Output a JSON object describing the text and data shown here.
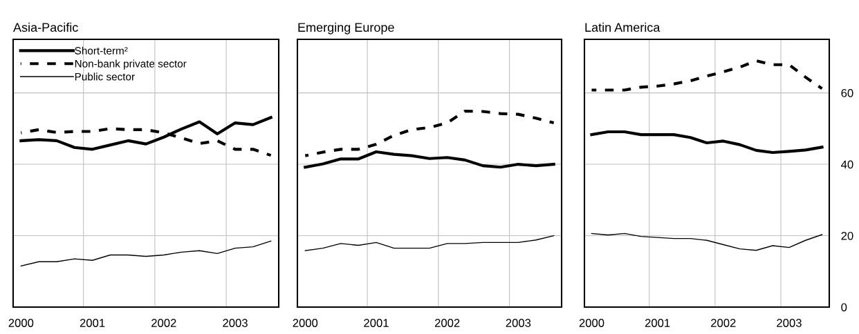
{
  "chart_data": [
    {
      "type": "line",
      "title": "Asia-Pacific",
      "x": [
        2000.0,
        2000.25,
        2000.5,
        2000.75,
        2001.0,
        2001.25,
        2001.5,
        2001.75,
        2002.0,
        2002.25,
        2002.5,
        2002.75,
        2003.0,
        2003.25,
        2003.5
      ],
      "series": [
        {
          "name": "Short-term²",
          "color": "#000000",
          "line_style": "solid",
          "values": [
            46.6,
            46.9,
            46.6,
            44.7,
            44.2,
            45.4,
            46.6,
            45.7,
            47.6,
            49.9,
            51.9,
            48.5,
            51.6,
            51.1,
            53.1
          ]
        },
        {
          "name": "Non-bank private sector",
          "color": "#000000",
          "line_style": "dashed",
          "values": [
            48.8,
            49.7,
            48.9,
            49.2,
            49.2,
            50.0,
            49.7,
            49.7,
            48.8,
            47.4,
            45.8,
            46.6,
            44.2,
            44.2,
            42.5
          ]
        },
        {
          "name": "Public sector",
          "color": "#000000",
          "line_style": "solid",
          "values": [
            11.5,
            12.7,
            12.7,
            13.5,
            13.1,
            14.6,
            14.6,
            14.2,
            14.6,
            15.4,
            15.8,
            15.0,
            16.5,
            16.9,
            18.5
          ]
        }
      ],
      "xlim": [
        1999.89,
        2003.61
      ],
      "xticks": [
        2000,
        2001,
        2002,
        2003
      ],
      "ylim": [
        0,
        75
      ],
      "yticks": [
        0,
        20,
        40,
        60
      ],
      "ref_lines": [
        {
          "axis": "x",
          "value": 2000.875,
          "color": "#c0c0c0"
        },
        {
          "axis": "x",
          "value": 2001.875,
          "color": "#c0c0c0"
        },
        {
          "axis": "x",
          "value": 2002.875,
          "color": "#c0c0c0"
        }
      ],
      "grid": "y",
      "legend": "top left",
      "tick_labels": "x"
    },
    {
      "type": "line",
      "title": "Emerging Europe",
      "x": [
        2000.0,
        2000.25,
        2000.5,
        2000.75,
        2001.0,
        2001.25,
        2001.5,
        2001.75,
        2002.0,
        2002.25,
        2002.5,
        2002.75,
        2003.0,
        2003.25,
        2003.5
      ],
      "series": [
        {
          "color": "#000000",
          "line_style": "solid",
          "values": [
            39.2,
            40.1,
            41.5,
            41.5,
            43.5,
            42.8,
            42.4,
            41.6,
            41.9,
            41.2,
            39.6,
            39.2,
            40.0,
            39.6,
            40.0
          ]
        },
        {
          "color": "#000000",
          "line_style": "dashed",
          "values": [
            42.4,
            43.4,
            44.2,
            44.2,
            45.6,
            48.1,
            49.7,
            50.3,
            51.6,
            54.9,
            54.8,
            54.2,
            54.0,
            52.9,
            51.6
          ]
        },
        {
          "color": "#000000",
          "line_style": "solid",
          "values": [
            15.8,
            16.5,
            17.8,
            17.3,
            18.1,
            16.5,
            16.5,
            16.5,
            17.8,
            17.8,
            18.1,
            18.1,
            18.1,
            18.8,
            20.0
          ]
        }
      ],
      "xlim": [
        1999.89,
        2003.61
      ],
      "xticks": [
        2000,
        2001,
        2002,
        2003
      ],
      "ylim": [
        0,
        75
      ],
      "yticks": [
        0,
        20,
        40,
        60
      ],
      "ref_lines": [
        {
          "axis": "x",
          "value": 2000.875,
          "color": "#c0c0c0"
        },
        {
          "axis": "x",
          "value": 2001.875,
          "color": "#c0c0c0"
        },
        {
          "axis": "x",
          "value": 2002.875,
          "color": "#c0c0c0"
        }
      ],
      "grid": "y",
      "tick_labels": "x"
    },
    {
      "type": "line",
      "title": "Latin America",
      "x": [
        2000.0,
        2000.25,
        2000.5,
        2000.75,
        2001.0,
        2001.25,
        2001.5,
        2001.75,
        2002.0,
        2002.25,
        2002.5,
        2002.75,
        2003.0,
        2003.25,
        2003.5
      ],
      "series": [
        {
          "color": "#000000",
          "line_style": "solid",
          "values": [
            48.3,
            49.1,
            49.1,
            48.3,
            48.3,
            48.3,
            47.5,
            46.0,
            46.5,
            45.5,
            43.9,
            43.3,
            43.6,
            44.0,
            44.8
          ]
        },
        {
          "color": "#000000",
          "line_style": "dashed",
          "values": [
            60.8,
            60.8,
            60.8,
            61.6,
            61.9,
            62.5,
            63.4,
            64.7,
            65.9,
            67.2,
            69.0,
            67.9,
            67.9,
            64.4,
            61.2
          ]
        },
        {
          "color": "#000000",
          "line_style": "solid",
          "values": [
            20.6,
            20.2,
            20.6,
            19.8,
            19.5,
            19.2,
            19.2,
            18.7,
            17.5,
            16.3,
            15.9,
            17.2,
            16.7,
            18.7,
            20.3
          ]
        }
      ],
      "xlim": [
        1999.89,
        2003.61
      ],
      "xticks": [
        2000,
        2001,
        2002,
        2003
      ],
      "ylim": [
        0,
        75
      ],
      "yticks": [
        0,
        20,
        40,
        60
      ],
      "ref_lines": [
        {
          "axis": "x",
          "value": 2000.875,
          "color": "#c0c0c0"
        },
        {
          "axis": "x",
          "value": 2001.875,
          "color": "#c0c0c0"
        },
        {
          "axis": "x",
          "value": 2002.875,
          "color": "#c0c0c0"
        }
      ],
      "grid": "y"
    }
  ]
}
